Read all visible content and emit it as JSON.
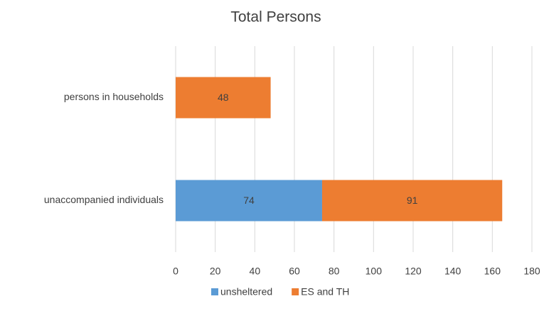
{
  "chart_data": {
    "type": "bar",
    "orientation": "horizontal",
    "stacked": true,
    "title": "Total Persons",
    "categories": [
      "persons in households",
      "unaccompanied individuals"
    ],
    "series": [
      {
        "name": "unsheltered",
        "color": "#5b9bd5",
        "values": [
          null,
          74
        ]
      },
      {
        "name": "ES and TH",
        "color": "#ed7d31",
        "values": [
          48,
          91
        ]
      }
    ],
    "xlim": [
      0,
      180
    ],
    "xticks": [
      0,
      20,
      40,
      60,
      80,
      100,
      120,
      140,
      160,
      180
    ],
    "grid": true,
    "legend": "bottom",
    "data_labels": true
  }
}
